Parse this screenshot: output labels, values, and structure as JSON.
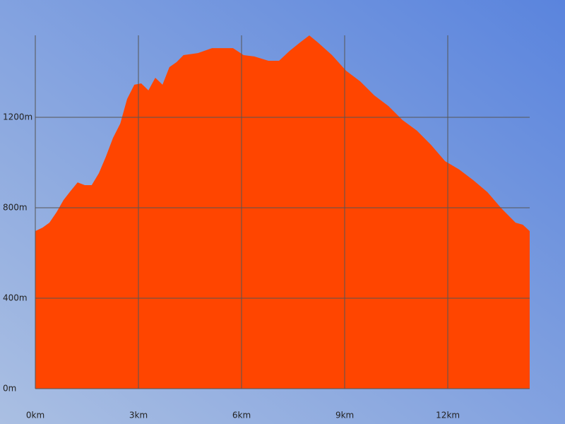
{
  "chart_data": {
    "type": "area",
    "color": "#ff4500",
    "grid": true,
    "x": [
      0,
      0.21,
      0.41,
      0.62,
      0.82,
      1.03,
      1.23,
      1.44,
      1.64,
      1.85,
      2.05,
      2.26,
      2.47,
      2.67,
      2.88,
      3.08,
      3.29,
      3.49,
      3.7,
      3.9,
      4.11,
      4.31,
      4.73,
      5.14,
      5.55,
      5.75,
      6.06,
      6.37,
      6.78,
      7.09,
      7.4,
      7.7,
      7.97,
      8.22,
      8.63,
      9.04,
      9.45,
      9.86,
      10.27,
      10.68,
      11.1,
      11.51,
      11.92,
      12.33,
      12.74,
      13.15,
      13.56,
      13.97,
      14.18,
      14.38
    ],
    "values": [
      697,
      712,
      734,
      781,
      834,
      875,
      912,
      900,
      900,
      953,
      1025,
      1109,
      1172,
      1281,
      1344,
      1350,
      1319,
      1375,
      1344,
      1422,
      1444,
      1475,
      1484,
      1506,
      1506,
      1506,
      1475,
      1469,
      1450,
      1450,
      1494,
      1531,
      1562,
      1531,
      1475,
      1406,
      1359,
      1297,
      1250,
      1188,
      1141,
      1078,
      1006,
      969,
      922,
      869,
      797,
      734,
      725,
      697
    ],
    "xlim": [
      0,
      14.38
    ],
    "ylim": [
      0,
      1562.5
    ],
    "xticks": [
      {
        "value": 0,
        "label": "0km"
      },
      {
        "value": 3,
        "label": "3km"
      },
      {
        "value": 6,
        "label": "6km"
      },
      {
        "value": 9,
        "label": "9km"
      },
      {
        "value": 12,
        "label": "12km"
      }
    ],
    "yticks": [
      {
        "value": 0,
        "label": "0m"
      },
      {
        "value": 400,
        "label": "400m"
      },
      {
        "value": 800,
        "label": "800m"
      },
      {
        "value": 1200,
        "label": "1200m"
      }
    ]
  }
}
